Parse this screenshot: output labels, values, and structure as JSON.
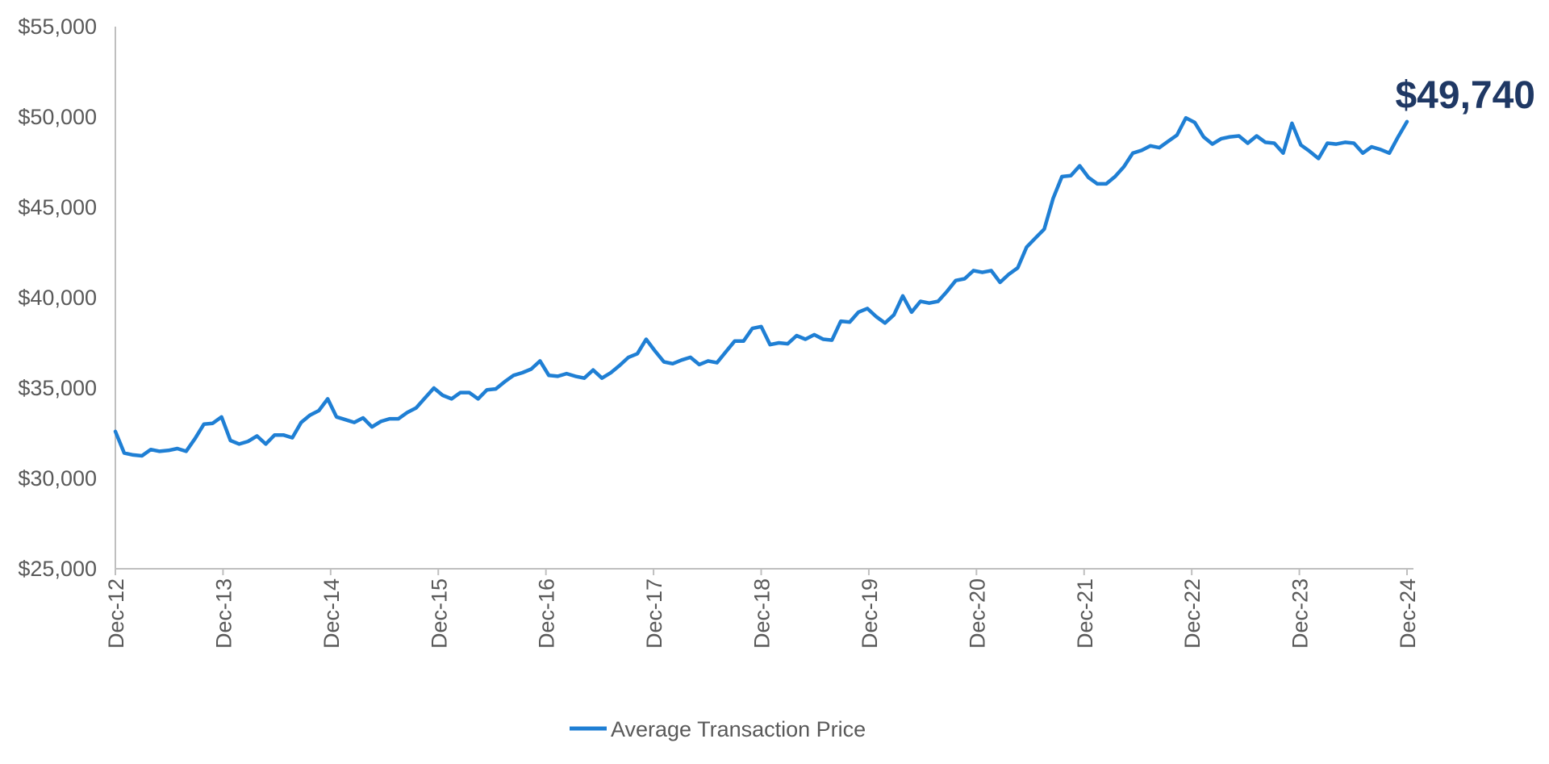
{
  "chart_data": {
    "type": "line",
    "ylim": [
      25000,
      55000
    ],
    "y_ticks": [
      25000,
      30000,
      35000,
      40000,
      45000,
      50000,
      55000
    ],
    "y_tick_labels": [
      "$25,000",
      "$30,000",
      "$35,000",
      "$40,000",
      "$45,000",
      "$50,000",
      "$55,000"
    ],
    "x_tick_labels": [
      "Dec-12",
      "Dec-13",
      "Dec-14",
      "Dec-15",
      "Dec-16",
      "Dec-17",
      "Dec-18",
      "Dec-19",
      "Dec-20",
      "Dec-21",
      "Dec-22",
      "Dec-23",
      "Dec-24"
    ],
    "grid": false,
    "legend_position": "bottom-center",
    "line_color": "#1f7fd4",
    "callout": {
      "text": "$49,740",
      "color": "#1f3864"
    },
    "series": [
      {
        "name": "Average Transaction Price",
        "values": [
          32600,
          31400,
          31300,
          31250,
          31600,
          31500,
          31550,
          31650,
          31500,
          32200,
          33000,
          33050,
          33400,
          32100,
          31900,
          32050,
          32350,
          31900,
          32400,
          32400,
          32250,
          33100,
          33500,
          33750,
          34400,
          33400,
          33250,
          33100,
          33350,
          32850,
          33150,
          33300,
          33300,
          33650,
          33900,
          34450,
          35000,
          34600,
          34400,
          34750,
          34750,
          34400,
          34900,
          34950,
          35350,
          35700,
          35850,
          36050,
          36500,
          35700,
          35650,
          35800,
          35650,
          35550,
          36000,
          35550,
          35850,
          36250,
          36700,
          36900,
          37700,
          37050,
          36450,
          36350,
          36550,
          36700,
          36300,
          36500,
          36400,
          37000,
          37600,
          37600,
          38300,
          38400,
          37400,
          37500,
          37450,
          37900,
          37700,
          37950,
          37700,
          37650,
          38700,
          38650,
          39200,
          39400,
          38950,
          38600,
          39050,
          40100,
          39200,
          39800,
          39700,
          39800,
          40350,
          40950,
          41050,
          41500,
          41400,
          41500,
          40850,
          41300,
          41650,
          42800,
          43300,
          43800,
          45500,
          46700,
          46750,
          47300,
          46650,
          46300,
          46300,
          46700,
          47250,
          48000,
          48150,
          48400,
          48300,
          48650,
          49000,
          49950,
          49700,
          48900,
          48500,
          48800,
          48900,
          48950,
          48550,
          48950,
          48600,
          48550,
          48000,
          49650,
          48450,
          48100,
          47700,
          48550,
          48500,
          48600,
          48550,
          48000,
          48350,
          48200,
          48000,
          48900,
          49740
        ]
      }
    ]
  }
}
